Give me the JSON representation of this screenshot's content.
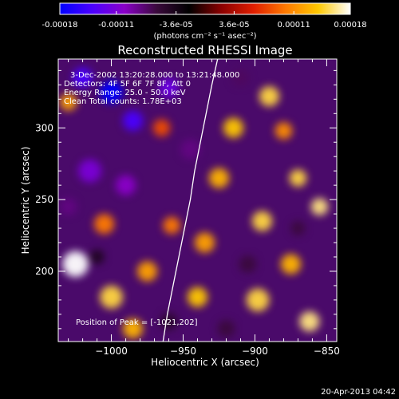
{
  "colorbar": {
    "ticks": [
      "-0.00018",
      "-0.00011",
      "-3.6e-05",
      "3.6e-05",
      "0.00011",
      "0.00018"
    ],
    "unit_label": "(photons cm⁻² s⁻¹ asec⁻²)",
    "min": -0.00018,
    "max": 0.00018,
    "stops": [
      "#0000ff",
      "#4b00ff",
      "#8a00c8",
      "#3a0a3c",
      "#000000",
      "#8a0000",
      "#e01e00",
      "#ff7a00",
      "#ffc800",
      "#ffffff"
    ]
  },
  "chart_data": {
    "type": "heatmap",
    "title": "Reconstructed RHESSI Image",
    "xlabel": "Heliocentric X (arcsec)",
    "ylabel": "Heliocentric Y (arcsec)",
    "xlim": [
      -1037,
      -843
    ],
    "ylim": [
      151,
      348
    ],
    "x_ticks": [
      -1000,
      -950,
      -900,
      -850
    ],
    "x_tick_labels": [
      "−1000",
      "−950",
      "−900",
      "−850"
    ],
    "y_ticks": [
      200,
      250,
      300
    ],
    "y_tick_labels": [
      "200",
      "250",
      "300"
    ],
    "grid": false,
    "annotations": [
      "3-Dec-2002 13:20:28.000 to 13:21:48.000",
      "Detectors: 4F 5F 6F 7F 8F, Att 0",
      "Energy Range: 25.0 - 50.0 keV",
      "Clean    Total counts: 1.78E+03",
      "Position of Peak = [-1021,202]"
    ],
    "peak": {
      "x": -1021,
      "y": 202
    },
    "limb_curve": {
      "x": [
        -964,
        -961,
        -957,
        -953,
        -949,
        -945,
        -942,
        -938,
        -934,
        -930,
        -926,
        -922
      ],
      "y": [
        151,
        170,
        190,
        210,
        230,
        250,
        270,
        290,
        310,
        330,
        348,
        356
      ]
    },
    "blobs": [
      {
        "x": -1025,
        "y": 205,
        "v": 0.00018,
        "s": 9
      },
      {
        "x": -1000,
        "y": 182,
        "v": 0.00015,
        "s": 8
      },
      {
        "x": -985,
        "y": 160,
        "v": 0.00013,
        "s": 7
      },
      {
        "x": -1030,
        "y": 318,
        "v": 0.00012,
        "s": 6
      },
      {
        "x": -1005,
        "y": 233,
        "v": 0.0001,
        "s": 7
      },
      {
        "x": -975,
        "y": 200,
        "v": 0.00012,
        "s": 7
      },
      {
        "x": -958,
        "y": 232,
        "v": 0.0001,
        "s": 6
      },
      {
        "x": -965,
        "y": 300,
        "v": 8e-05,
        "s": 6
      },
      {
        "x": -935,
        "y": 220,
        "v": 0.00012,
        "s": 7
      },
      {
        "x": -940,
        "y": 182,
        "v": 0.00014,
        "s": 7
      },
      {
        "x": -925,
        "y": 265,
        "v": 0.00013,
        "s": 7
      },
      {
        "x": -915,
        "y": 300,
        "v": 0.00014,
        "s": 7
      },
      {
        "x": -898,
        "y": 180,
        "v": 0.00015,
        "s": 8
      },
      {
        "x": -895,
        "y": 235,
        "v": 0.00015,
        "s": 7
      },
      {
        "x": -890,
        "y": 322,
        "v": 0.00015,
        "s": 7
      },
      {
        "x": -870,
        "y": 265,
        "v": 0.00015,
        "s": 6
      },
      {
        "x": -855,
        "y": 245,
        "v": 0.00016,
        "s": 6
      },
      {
        "x": -875,
        "y": 205,
        "v": 0.00013,
        "s": 7
      },
      {
        "x": -862,
        "y": 165,
        "v": 0.00016,
        "s": 7
      },
      {
        "x": -880,
        "y": 298,
        "v": 0.00011,
        "s": 6
      },
      {
        "x": -1000,
        "y": 325,
        "v": -0.00018,
        "s": 8
      },
      {
        "x": -985,
        "y": 305,
        "v": -0.00014,
        "s": 7
      },
      {
        "x": -1020,
        "y": 335,
        "v": -0.00014,
        "s": 7
      },
      {
        "x": -960,
        "y": 328,
        "v": -0.00012,
        "s": 7
      },
      {
        "x": -1015,
        "y": 270,
        "v": -0.00011,
        "s": 8
      },
      {
        "x": -990,
        "y": 260,
        "v": -0.0001,
        "s": 7
      },
      {
        "x": -1030,
        "y": 245,
        "v": -8e-05,
        "s": 6
      },
      {
        "x": -945,
        "y": 285,
        "v": -8e-05,
        "s": 7
      },
      {
        "x": -910,
        "y": 335,
        "v": -7e-05,
        "s": 6
      },
      {
        "x": -905,
        "y": 205,
        "v": -6e-05,
        "s": 6
      },
      {
        "x": -920,
        "y": 160,
        "v": -6e-05,
        "s": 6
      },
      {
        "x": -960,
        "y": 165,
        "v": -5e-05,
        "s": 6
      },
      {
        "x": -870,
        "y": 230,
        "v": -6e-05,
        "s": 5
      },
      {
        "x": -1010,
        "y": 210,
        "v": -4e-05,
        "s": 5
      }
    ]
  },
  "footer": {
    "timestamp": "20-Apr-2013 04:42"
  }
}
